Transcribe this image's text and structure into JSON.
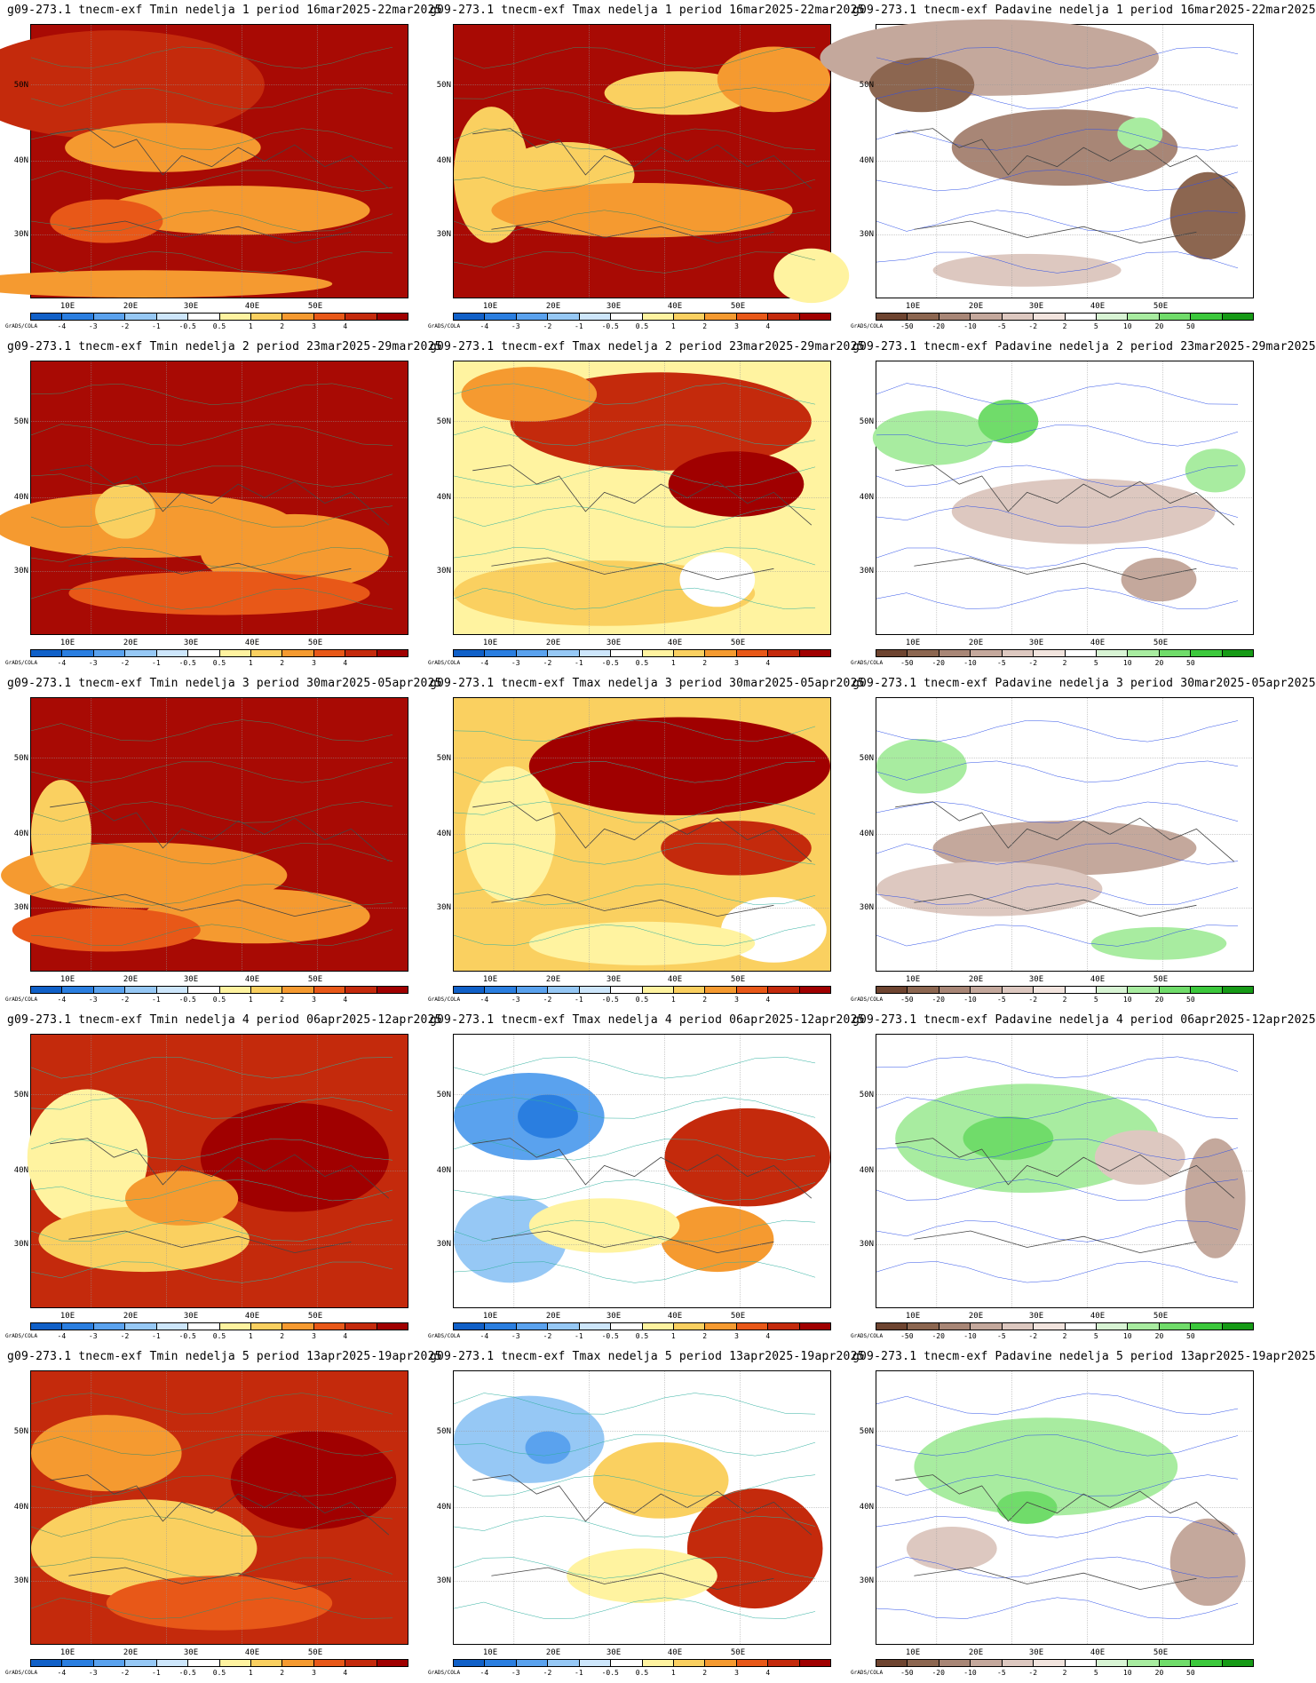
{
  "source_label": "GrADS/COLA",
  "lat_labels": [
    "50N",
    "40N",
    "30N"
  ],
  "lon_labels": [
    "10E",
    "20E",
    "30E",
    "40E",
    "50E"
  ],
  "temp_scale": {
    "labels": [
      "-4",
      "-3",
      "-2",
      "-1",
      "-0.5",
      "0.5",
      "1",
      "2",
      "3",
      "4"
    ],
    "colors": [
      "#1060c8",
      "#2a7ee0",
      "#5aa2ee",
      "#96c8f5",
      "#cde6fb",
      "#ffffff",
      "#fff3a0",
      "#fad060",
      "#f59a30",
      "#e85818",
      "#c42a0c",
      "#a00000"
    ]
  },
  "precip_scale": {
    "labels": [
      "-50",
      "-20",
      "-10",
      "-5",
      "-2",
      "2",
      "5",
      "10",
      "20",
      "50"
    ],
    "colors": [
      "#6e4430",
      "#8c6650",
      "#a88676",
      "#c4a89c",
      "#ddc8c0",
      "#f2e4de",
      "#ffffff",
      "#d8f4d4",
      "#a8eca0",
      "#70dc6a",
      "#3cc83c",
      "#169a16"
    ]
  },
  "panels": [
    {
      "title": "g09-273.1 tnecm-exf Tmin nedelja 1 period 16mar2025-22mar2025",
      "kind": "temp",
      "base": "#a80a04",
      "blobs": [
        [
          "#c42a0c",
          22,
          22,
          40,
          20
        ],
        [
          "#f59a30",
          35,
          45,
          26,
          9
        ],
        [
          "#f59a30",
          55,
          68,
          35,
          9
        ],
        [
          "#e85818",
          20,
          72,
          15,
          8
        ],
        [
          "#f59a30",
          30,
          95,
          50,
          5
        ]
      ],
      "contour": "#3c8a6a"
    },
    {
      "title": "g09-273.1 tnecm-exf Tmax nedelja 1 period 16mar2025-22mar2025",
      "kind": "temp",
      "base": "#a80a04",
      "blobs": [
        [
          "#fad060",
          10,
          55,
          10,
          25
        ],
        [
          "#fad060",
          30,
          55,
          18,
          12
        ],
        [
          "#f59a30",
          50,
          68,
          40,
          10
        ],
        [
          "#fad060",
          60,
          25,
          20,
          8
        ],
        [
          "#f59a30",
          85,
          20,
          15,
          12
        ],
        [
          "#fff3a0",
          95,
          92,
          10,
          10
        ]
      ],
      "contour": "#3c8a6a"
    },
    {
      "title": "g09-273.1 tnecm-exf Padavine nedelja 1 period 16mar2025-22mar2025",
      "kind": "precip",
      "base": "#ffffff",
      "blobs": [
        [
          "#c4a89c",
          30,
          12,
          45,
          14
        ],
        [
          "#8c6650",
          12,
          22,
          14,
          10
        ],
        [
          "#a88676",
          50,
          45,
          30,
          14
        ],
        [
          "#8c6650",
          88,
          70,
          10,
          16
        ],
        [
          "#a8eca0",
          70,
          40,
          6,
          6
        ],
        [
          "#ddc8c0",
          40,
          90,
          25,
          6
        ]
      ],
      "contour": "#2e50e8"
    },
    {
      "title": "g09-273.1 tnecm-exf Tmin nedelja 2 period 23mar2025-29mar2025",
      "kind": "temp",
      "base": "#a80a04",
      "blobs": [
        [
          "#f59a30",
          30,
          60,
          40,
          12
        ],
        [
          "#f59a30",
          70,
          70,
          25,
          14
        ],
        [
          "#fad060",
          25,
          55,
          8,
          10
        ],
        [
          "#e85818",
          50,
          85,
          40,
          8
        ]
      ],
      "contour": "#3c8a6a"
    },
    {
      "title": "g09-273.1 tnecm-exf Tmax nedelja 2 period 23mar2025-29mar2025",
      "kind": "temp",
      "base": "#fff3a0",
      "blobs": [
        [
          "#c42a0c",
          55,
          22,
          40,
          18
        ],
        [
          "#a00000",
          75,
          45,
          18,
          12
        ],
        [
          "#f59a30",
          20,
          12,
          18,
          10
        ],
        [
          "#fad060",
          40,
          85,
          40,
          12
        ],
        [
          "#ffffff",
          70,
          80,
          10,
          10
        ]
      ],
      "contour": "#2fb0a0"
    },
    {
      "title": "g09-273.1 tnecm-exf Padavine nedelja 2 period 23mar2025-29mar2025",
      "kind": "precip",
      "base": "#ffffff",
      "blobs": [
        [
          "#a8eca0",
          15,
          28,
          16,
          10
        ],
        [
          "#70dc6a",
          35,
          22,
          8,
          8
        ],
        [
          "#a8eca0",
          90,
          40,
          8,
          8
        ],
        [
          "#ddc8c0",
          55,
          55,
          35,
          12
        ],
        [
          "#c4a89c",
          75,
          80,
          10,
          8
        ]
      ],
      "contour": "#2e50e8"
    },
    {
      "title": "g09-273.1 tnecm-exf Tmin nedelja 3 period 30mar2025-05apr2025",
      "kind": "temp",
      "base": "#a80a04",
      "blobs": [
        [
          "#f59a30",
          30,
          65,
          38,
          12
        ],
        [
          "#fad060",
          8,
          50,
          8,
          20
        ],
        [
          "#f59a30",
          60,
          80,
          30,
          10
        ],
        [
          "#e85818",
          20,
          85,
          25,
          8
        ]
      ],
      "contour": "#3c8a6a"
    },
    {
      "title": "g09-273.1 tnecm-exf Tmax nedelja 3 period 30mar2025-05apr2025",
      "kind": "temp",
      "base": "#fad060",
      "blobs": [
        [
          "#a00000",
          60,
          25,
          40,
          18
        ],
        [
          "#c42a0c",
          75,
          55,
          20,
          10
        ],
        [
          "#fff3a0",
          15,
          50,
          12,
          25
        ],
        [
          "#ffffff",
          85,
          85,
          14,
          12
        ],
        [
          "#fff3a0",
          50,
          90,
          30,
          8
        ]
      ],
      "contour": "#2fb0a0"
    },
    {
      "title": "g09-273.1 tnecm-exf Padavine nedelja 3 period 30mar2025-05apr2025",
      "kind": "precip",
      "base": "#ffffff",
      "blobs": [
        [
          "#a8eca0",
          12,
          25,
          12,
          10
        ],
        [
          "#c4a89c",
          50,
          55,
          35,
          10
        ],
        [
          "#ddc8c0",
          30,
          70,
          30,
          10
        ],
        [
          "#a8eca0",
          75,
          90,
          18,
          6
        ]
      ],
      "contour": "#2e50e8"
    },
    {
      "title": "g09-273.1 tnecm-exf Tmin nedelja 4 period 06apr2025-12apr2025",
      "kind": "temp",
      "base": "#c42a0c",
      "blobs": [
        [
          "#fff3a0",
          15,
          45,
          16,
          25
        ],
        [
          "#fad060",
          30,
          75,
          28,
          12
        ],
        [
          "#a00000",
          70,
          45,
          25,
          20
        ],
        [
          "#f59a30",
          40,
          60,
          15,
          10
        ]
      ],
      "contour": "#2fb0a0"
    },
    {
      "title": "g09-273.1 tnecm-exf Tmax nedelja 4 period 06apr2025-12apr2025",
      "kind": "temp",
      "base": "#ffffff",
      "blobs": [
        [
          "#5aa2ee",
          20,
          30,
          20,
          16
        ],
        [
          "#2a7ee0",
          25,
          30,
          8,
          8
        ],
        [
          "#96c8f5",
          15,
          75,
          15,
          16
        ],
        [
          "#c42a0c",
          78,
          45,
          22,
          18
        ],
        [
          "#f59a30",
          70,
          75,
          15,
          12
        ],
        [
          "#fff3a0",
          40,
          70,
          20,
          10
        ]
      ],
      "contour": "#2fb0a0"
    },
    {
      "title": "g09-273.1 tnecm-exf Padavine nedelja 4 period 06apr2025-12apr2025",
      "kind": "precip",
      "base": "#ffffff",
      "blobs": [
        [
          "#a8eca0",
          40,
          38,
          35,
          20
        ],
        [
          "#70dc6a",
          35,
          38,
          12,
          8
        ],
        [
          "#c4a89c",
          90,
          60,
          8,
          22
        ],
        [
          "#ddc8c0",
          70,
          45,
          12,
          10
        ]
      ],
      "contour": "#2e50e8"
    },
    {
      "title": "g09-273.1 tnecm-exf Tmin nedelja 5 period 13apr2025-19apr2025",
      "kind": "temp",
      "base": "#c42a0c",
      "blobs": [
        [
          "#fad060",
          30,
          65,
          30,
          18
        ],
        [
          "#f59a30",
          20,
          30,
          20,
          14
        ],
        [
          "#a00000",
          75,
          40,
          22,
          18
        ],
        [
          "#e85818",
          50,
          85,
          30,
          10
        ]
      ],
      "contour": "#3c8a6a"
    },
    {
      "title": "g09-273.1 tnecm-exf Tmax nedelja 5 period 13apr2025-19apr2025",
      "kind": "temp",
      "base": "#ffffff",
      "blobs": [
        [
          "#96c8f5",
          20,
          25,
          20,
          16
        ],
        [
          "#5aa2ee",
          25,
          28,
          6,
          6
        ],
        [
          "#fad060",
          55,
          40,
          18,
          14
        ],
        [
          "#c42a0c",
          80,
          65,
          18,
          22
        ],
        [
          "#fff3a0",
          50,
          75,
          20,
          10
        ]
      ],
      "contour": "#2fb0a0"
    },
    {
      "title": "g09-273.1 tnecm-exf Padavine nedelja 5 period 13apr2025-19apr2025",
      "kind": "precip",
      "base": "#ffffff",
      "blobs": [
        [
          "#a8eca0",
          45,
          35,
          35,
          18
        ],
        [
          "#70dc6a",
          40,
          50,
          8,
          6
        ],
        [
          "#c4a89c",
          88,
          70,
          10,
          16
        ],
        [
          "#ddc8c0",
          20,
          65,
          12,
          8
        ]
      ],
      "contour": "#2e50e8"
    }
  ]
}
